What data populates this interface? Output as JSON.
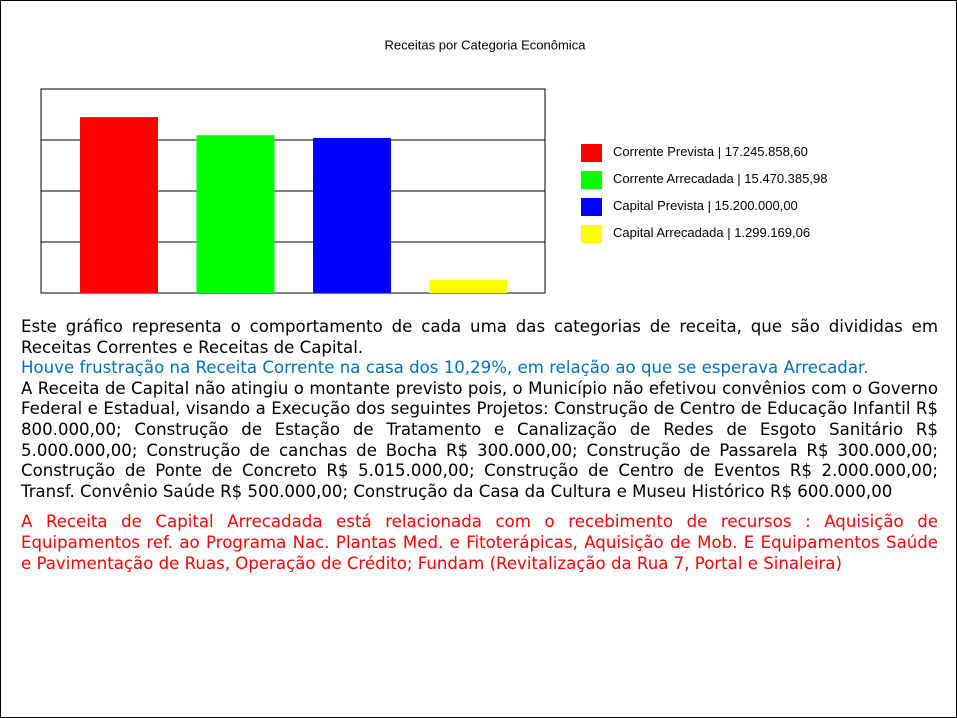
{
  "chart_data": {
    "type": "bar",
    "title": "Receitas por Categoria Econômica",
    "categories": [
      "Corrente Prevista",
      "Corrente Arrecadada",
      "Capital Prevista",
      "Capital Arrecadada"
    ],
    "values": [
      17245858.6,
      15470385.98,
      15200000.0,
      1299169.06
    ],
    "value_labels": [
      "17.245.858,60",
      "15.470.385,98",
      "15.200.000,00",
      "1.299.169,06"
    ],
    "colors": [
      "#ff0000",
      "#00ff00",
      "#0000ff",
      "#ffff00"
    ],
    "ylim": [
      0,
      20000000
    ],
    "yticks": [
      0,
      5000000,
      10000000,
      15000000,
      20000000
    ],
    "grid": true,
    "legend": "right"
  },
  "paragraphs": [
    {
      "text": "Este gráfico representa o comportamento de cada uma das categorias de receita, que são divididas em Receitas Correntes e Receitas de Capital.",
      "color": "#000000"
    },
    {
      "text": "Houve frustração na Receita Corrente na casa dos 10,29%,  em relação ao que se esperava Arrecadar.",
      "color": "#0070c0"
    },
    {
      "text": "A Receita de Capital não atingiu o montante previsto pois, o Município não efetivou convênios com o Governo Federal e Estadual, visando a Execução dos seguintes Projetos: Construção de Centro de Educação Infantil R$ 800.000,00; Construção de Estação de Tratamento e Canalização de Redes de Esgoto Sanitário R$ 5.000.000,00; Construção de canchas de Bocha R$ 300.000,00; Construção de Passarela R$ 300.000,00; Construção de Ponte de Concreto R$ 5.015.000,00; Construção de Centro de Eventos R$ 2.000.000,00; Transf. Convênio Saúde R$ 500.000,00; Construção da Casa da Cultura e Museu Histórico R$ 600.000,00",
      "color": "#000000"
    },
    {
      "text": "A Receita de Capital Arrecadada está relacionada com o recebimento de recursos : Aquisição de Equipamentos ref. ao Programa Nac. Plantas Med. e Fitoterápicas, Aquisição de Mob. E Equipamentos Saúde e Pavimentação de Ruas, Operação de Crédito; Fundam (Revitalização da Rua 7, Portal e Sinaleira)",
      "color": "#ff0000"
    }
  ]
}
